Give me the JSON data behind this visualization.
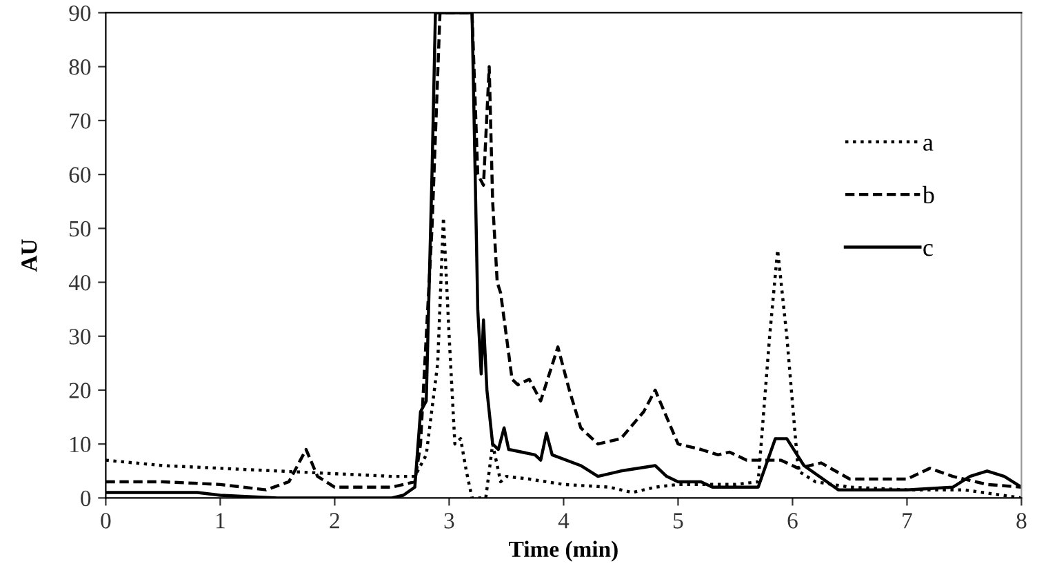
{
  "chart_data": {
    "type": "line",
    "xlabel": "Time (min)",
    "ylabel": "AU",
    "xlim": [
      0,
      8
    ],
    "ylim": [
      0,
      90
    ],
    "xticks": [
      0,
      1,
      2,
      3,
      4,
      5,
      6,
      7,
      8
    ],
    "yticks": [
      0,
      10,
      20,
      30,
      40,
      50,
      60,
      70,
      80,
      90
    ],
    "grid": false,
    "legend": "right",
    "marker": "none",
    "series": [
      {
        "name": "a",
        "color": "#000000",
        "line_style": "dotted",
        "x": [
          0,
          0.5,
          1,
          1.5,
          2,
          2.5,
          2.7,
          2.8,
          2.9,
          2.95,
          3.0,
          3.05,
          3.1,
          3.15,
          3.2,
          3.32,
          3.38,
          3.45,
          3.5,
          3.7,
          4,
          4.4,
          4.6,
          4.8,
          5,
          5.5,
          5.7,
          5.8,
          5.87,
          5.95,
          6.05,
          6.2,
          6.5,
          7,
          7.3,
          7.5,
          8
        ],
        "values": [
          7,
          6,
          5.5,
          5,
          4.5,
          4,
          4,
          8,
          25,
          52,
          30,
          10,
          11,
          5,
          0,
          0,
          10,
          3,
          4,
          3.5,
          2.5,
          2,
          1,
          2,
          2.5,
          2.5,
          3,
          30,
          46,
          30,
          5,
          3,
          2,
          1.5,
          1.5,
          1.5,
          0
        ]
      },
      {
        "name": "b",
        "color": "#000000",
        "line_style": "dashed",
        "x": [
          0,
          0.5,
          1,
          1.4,
          1.6,
          1.7,
          1.75,
          1.85,
          2,
          2.5,
          2.7,
          2.75,
          2.85,
          2.92,
          3.2,
          3.25,
          3.3,
          3.35,
          3.38,
          3.42,
          3.45,
          3.5,
          3.55,
          3.6,
          3.7,
          3.8,
          3.95,
          4.05,
          4.15,
          4.3,
          4.5,
          4.7,
          4.8,
          4.9,
          5.0,
          5.2,
          5.35,
          5.45,
          5.6,
          5.9,
          6.05,
          6.25,
          6.5,
          7,
          7.2,
          7.4,
          7.7,
          8
        ],
        "values": [
          3,
          3,
          2.5,
          1.5,
          3,
          7,
          9,
          4,
          2,
          2,
          3,
          10,
          50,
          90,
          90,
          60,
          58,
          80,
          55,
          40,
          38,
          30,
          22,
          21,
          22,
          18,
          28,
          20,
          13,
          10,
          11,
          16,
          20,
          15,
          10,
          9,
          8,
          8.5,
          7,
          7,
          5.5,
          6.5,
          3.5,
          3.5,
          5.5,
          4,
          2.5,
          2
        ]
      },
      {
        "name": "c",
        "color": "#000000",
        "line_style": "solid",
        "x": [
          0,
          0.8,
          1,
          1.5,
          2,
          2.5,
          2.6,
          2.7,
          2.75,
          2.8,
          2.85,
          2.88,
          3.2,
          3.25,
          3.28,
          3.3,
          3.33,
          3.38,
          3.43,
          3.48,
          3.52,
          3.75,
          3.8,
          3.85,
          3.9,
          4.15,
          4.3,
          4.5,
          4.8,
          4.9,
          5,
          5.2,
          5.3,
          5.7,
          5.85,
          5.95,
          6.1,
          6.4,
          7,
          7.4,
          7.55,
          7.7,
          7.85,
          8
        ],
        "values": [
          1,
          1,
          0.5,
          0,
          0,
          0,
          0.5,
          2,
          16,
          18,
          60,
          90,
          90,
          35,
          23,
          33,
          20,
          10,
          9,
          13,
          9,
          8,
          7,
          12,
          8,
          6,
          4,
          5,
          6,
          4,
          3,
          3,
          2,
          2,
          11,
          11,
          6,
          1.5,
          1.5,
          2,
          4,
          5,
          4,
          2
        ]
      }
    ]
  }
}
